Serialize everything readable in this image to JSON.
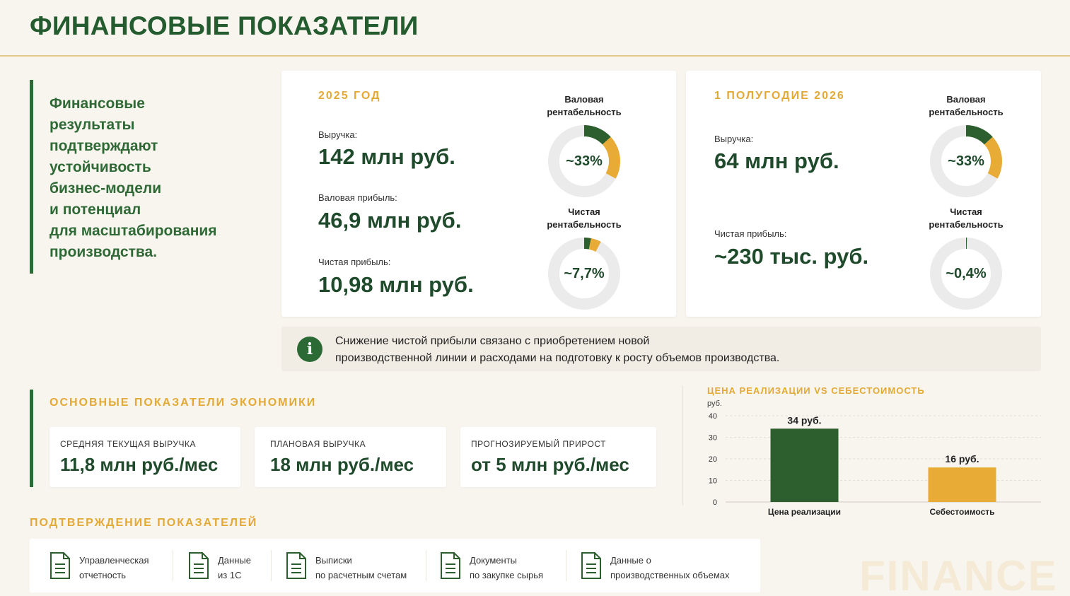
{
  "page": {
    "title": "ФИНАНСОВЫЕ ПОКАЗАТЕЛИ"
  },
  "intro": {
    "lines": [
      "Финансовые",
      "результаты",
      "подтверждают",
      "устойчивость",
      "бизнес-модели",
      "и потенциал",
      "для масштабирования",
      "производства."
    ]
  },
  "card2025": {
    "heading": "2025 ГОД",
    "revenue_label": "Выручка:",
    "revenue_value": "142 млн руб.",
    "gross_label": "Валовая прибыль:",
    "gross_value": "46,9 млн руб.",
    "net_label": "Чистая прибыль:",
    "net_value": "10,98 млн руб.",
    "gross_margin_title_1": "Валовая",
    "gross_margin_title_2": "рентабельность",
    "gross_margin_text": "~33%",
    "gross_margin_fraction": 0.33,
    "net_margin_title_1": "Чистая",
    "net_margin_title_2": "рентабельность",
    "net_margin_text": "~7,7%",
    "net_margin_fraction": 0.077
  },
  "card2026": {
    "heading": "1 ПОЛУГОДИЕ 2026",
    "revenue_label": "Выручка:",
    "revenue_value": "64 млн руб.",
    "net_label": "Чистая прибыль:",
    "net_value": "~230 тыс. руб.",
    "gross_margin_title_1": "Валовая",
    "gross_margin_title_2": "рентабельность",
    "gross_margin_text": "~33%",
    "gross_margin_fraction": 0.33,
    "net_margin_title_1": "Чистая",
    "net_margin_title_2": "рентабельность",
    "net_margin_text": "~0,4%",
    "net_margin_fraction": 0.004
  },
  "note": {
    "icon": "info-icon",
    "icon_glyph": "i",
    "line1": "Снижение чистой прибыли связано с приобретением новой",
    "line2": "производственной линии и расходами на подготовку к росту объемов производства."
  },
  "economy": {
    "heading": "ОСНОВНЫЕ ПОКАЗАТЕЛИ ЭКОНОМИКИ",
    "kpis": [
      {
        "label": "СРЕДНЯЯ ТЕКУЩАЯ ВЫРУЧКА",
        "value": "11,8 млн руб./мес"
      },
      {
        "label": "ПЛАНОВАЯ ВЫРУЧКА",
        "value": "18 млн руб./мес"
      },
      {
        "label": "ПРОГНОЗИРУЕМЫЙ ПРИРОСТ",
        "value": "от 5 млн руб./мес"
      }
    ]
  },
  "chart_data": {
    "type": "bar",
    "title": "ЦЕНА РЕАЛИЗАЦИИ VS СЕБЕСТОИМОСТЬ",
    "ylabel": "руб.",
    "categories": [
      "Цена реализации",
      "Себестоимость"
    ],
    "values": [
      34,
      16
    ],
    "data_labels": [
      "34 руб.",
      "16 руб."
    ],
    "colors": [
      "#2d5e2e",
      "#e8ab35"
    ],
    "ylim": [
      0,
      40
    ],
    "yticks": [
      0,
      10,
      20,
      30,
      40
    ],
    "grid": true
  },
  "confirm": {
    "heading": "ПОДТВЕРЖДЕНИЕ ПОКАЗАТЕЛЕЙ",
    "docs": [
      {
        "icon": "document-icon",
        "line1": "Управленческая",
        "line2": "отчетность"
      },
      {
        "icon": "document-icon",
        "line1": "Данные",
        "line2": "из 1С"
      },
      {
        "icon": "document-icon",
        "line1": "Выписки",
        "line2": "по расчетным счетам"
      },
      {
        "icon": "document-icon",
        "line1": "Документы",
        "line2": "по закупке сырья"
      },
      {
        "icon": "document-icon",
        "line1": "Данные о",
        "line2": "производственных объемах"
      }
    ]
  },
  "watermark": "FINANCE",
  "colors": {
    "primary": "#245c2f",
    "accent": "#e3a936",
    "background": "#f8f5ef",
    "track": "#ebebeb"
  }
}
